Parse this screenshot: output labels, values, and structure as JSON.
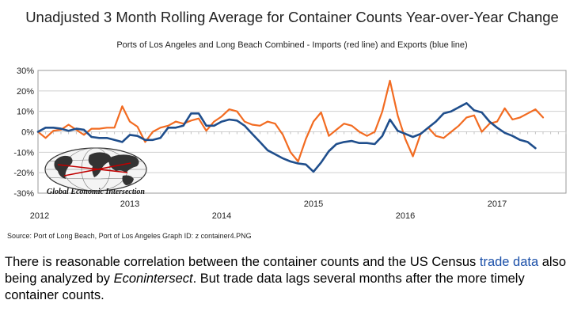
{
  "chart_data": {
    "type": "line",
    "title": "Unadjusted 3 Month Rolling Average for Container Counts Year-over-Year Change",
    "subtitle": "Ports of Los Angeles and Long Beach Combined - Imports (red line) and Exports (blue line)",
    "source": "Source: Port of Long Beach, Port of Los Angeles    Graph ID: z container4.PNG",
    "watermark": "Global Economic Intersection",
    "x_range": [
      2012.0,
      2017.75
    ],
    "ylim": [
      -30,
      30
    ],
    "y_ticks": [
      30,
      20,
      10,
      0,
      -10,
      -20,
      -30
    ],
    "y_tick_labels": [
      "30%",
      "20%",
      "10%",
      "0%",
      "-10%",
      "-20%",
      "-30%"
    ],
    "x_tick_labels": [
      {
        "label": "2012",
        "x": 2012.0,
        "row": "lower"
      },
      {
        "label": "2013",
        "x": 2013.0,
        "row": "upper"
      },
      {
        "label": "2014",
        "x": 2014.0,
        "row": "lower"
      },
      {
        "label": "2015",
        "x": 2015.0,
        "row": "upper"
      },
      {
        "label": "2016",
        "x": 2016.0,
        "row": "lower"
      },
      {
        "label": "2017",
        "x": 2017.0,
        "row": "upper"
      }
    ],
    "grid": true,
    "series": [
      {
        "color": "#f26b21",
        "x": [
          2012.0,
          2012.083,
          2012.167,
          2012.25,
          2012.333,
          2012.417,
          2012.5,
          2012.583,
          2012.667,
          2012.75,
          2012.833,
          2012.917,
          2013.0,
          2013.083,
          2013.167,
          2013.25,
          2013.333,
          2013.417,
          2013.5,
          2013.583,
          2013.667,
          2013.75,
          2013.833,
          2013.917,
          2014.0,
          2014.083,
          2014.167,
          2014.25,
          2014.333,
          2014.417,
          2014.5,
          2014.583,
          2014.667,
          2014.75,
          2014.833,
          2014.917,
          2015.0,
          2015.083,
          2015.167,
          2015.25,
          2015.333,
          2015.417,
          2015.5,
          2015.583,
          2015.667,
          2015.75,
          2015.833,
          2015.917,
          2016.0,
          2016.083,
          2016.167,
          2016.25,
          2016.333,
          2016.417,
          2016.5,
          2016.583,
          2016.667,
          2016.75,
          2016.833,
          2016.917,
          2017.0,
          2017.083,
          2017.167,
          2017.25,
          2017.333,
          2017.417,
          2017.5,
          2017.583,
          2017.667
        ],
        "y": [
          0,
          -3,
          0.5,
          1,
          3.5,
          1,
          -1.5,
          1.5,
          1.5,
          2,
          2,
          12.5,
          5,
          2.5,
          -5,
          0,
          2,
          3,
          5,
          4,
          5.5,
          6.5,
          0.5,
          5,
          7.5,
          11,
          10,
          5,
          3.5,
          3,
          5,
          4,
          -1.5,
          -10,
          -14.5,
          -3.5,
          5,
          9.5,
          -2,
          1,
          4,
          3,
          0,
          -2,
          0,
          10,
          25,
          8,
          -3.5,
          -12,
          -1,
          2,
          -2,
          -3,
          0,
          3,
          7,
          8,
          0,
          4,
          5,
          11.5,
          6,
          7,
          9,
          11,
          7,
          null,
          null
        ]
      },
      {
        "color": "#1f4e8c",
        "x": [
          2012.0,
          2012.083,
          2012.167,
          2012.25,
          2012.333,
          2012.417,
          2012.5,
          2012.583,
          2012.667,
          2012.75,
          2012.833,
          2012.917,
          2013.0,
          2013.083,
          2013.167,
          2013.25,
          2013.333,
          2013.417,
          2013.5,
          2013.583,
          2013.667,
          2013.75,
          2013.833,
          2013.917,
          2014.0,
          2014.083,
          2014.167,
          2014.25,
          2014.333,
          2014.417,
          2014.5,
          2014.583,
          2014.667,
          2014.75,
          2014.833,
          2014.917,
          2015.0,
          2015.083,
          2015.167,
          2015.25,
          2015.333,
          2015.417,
          2015.5,
          2015.583,
          2015.667,
          2015.75,
          2015.833,
          2015.917,
          2016.0,
          2016.083,
          2016.167,
          2016.25,
          2016.333,
          2016.417,
          2016.5,
          2016.583,
          2016.667,
          2016.75,
          2016.833,
          2016.917,
          2017.0,
          2017.083,
          2017.167,
          2017.25,
          2017.333,
          2017.417,
          2017.5,
          2017.583,
          2017.667
        ],
        "y": [
          0,
          2,
          2,
          1.5,
          0.5,
          1.5,
          1,
          -2.5,
          -3,
          -3,
          -4,
          -5,
          -1.5,
          -2,
          -4,
          -4,
          -3,
          2,
          2,
          3,
          9,
          9,
          3,
          3,
          5,
          6,
          5.5,
          3,
          -1,
          -5,
          -9,
          -11,
          -13,
          -14.5,
          -15.5,
          -16,
          -19.5,
          -15,
          -9.5,
          -6,
          -5,
          -4.5,
          -5.5,
          -5.5,
          -6,
          -2,
          6,
          0.5,
          -1,
          -2.5,
          -1,
          2,
          5,
          9,
          10,
          12,
          14,
          10.5,
          9.5,
          5,
          2,
          -0.5,
          -2,
          -4,
          -5,
          -8,
          null,
          null,
          null
        ]
      }
    ]
  },
  "caption": {
    "part1": "There is reasonable correlation between the container counts and the US Census ",
    "link": "trade data",
    "part2": " also being analyzed by ",
    "emph": "Econintersect",
    "part3": ". But trade data lags several months after the more timely container counts."
  }
}
